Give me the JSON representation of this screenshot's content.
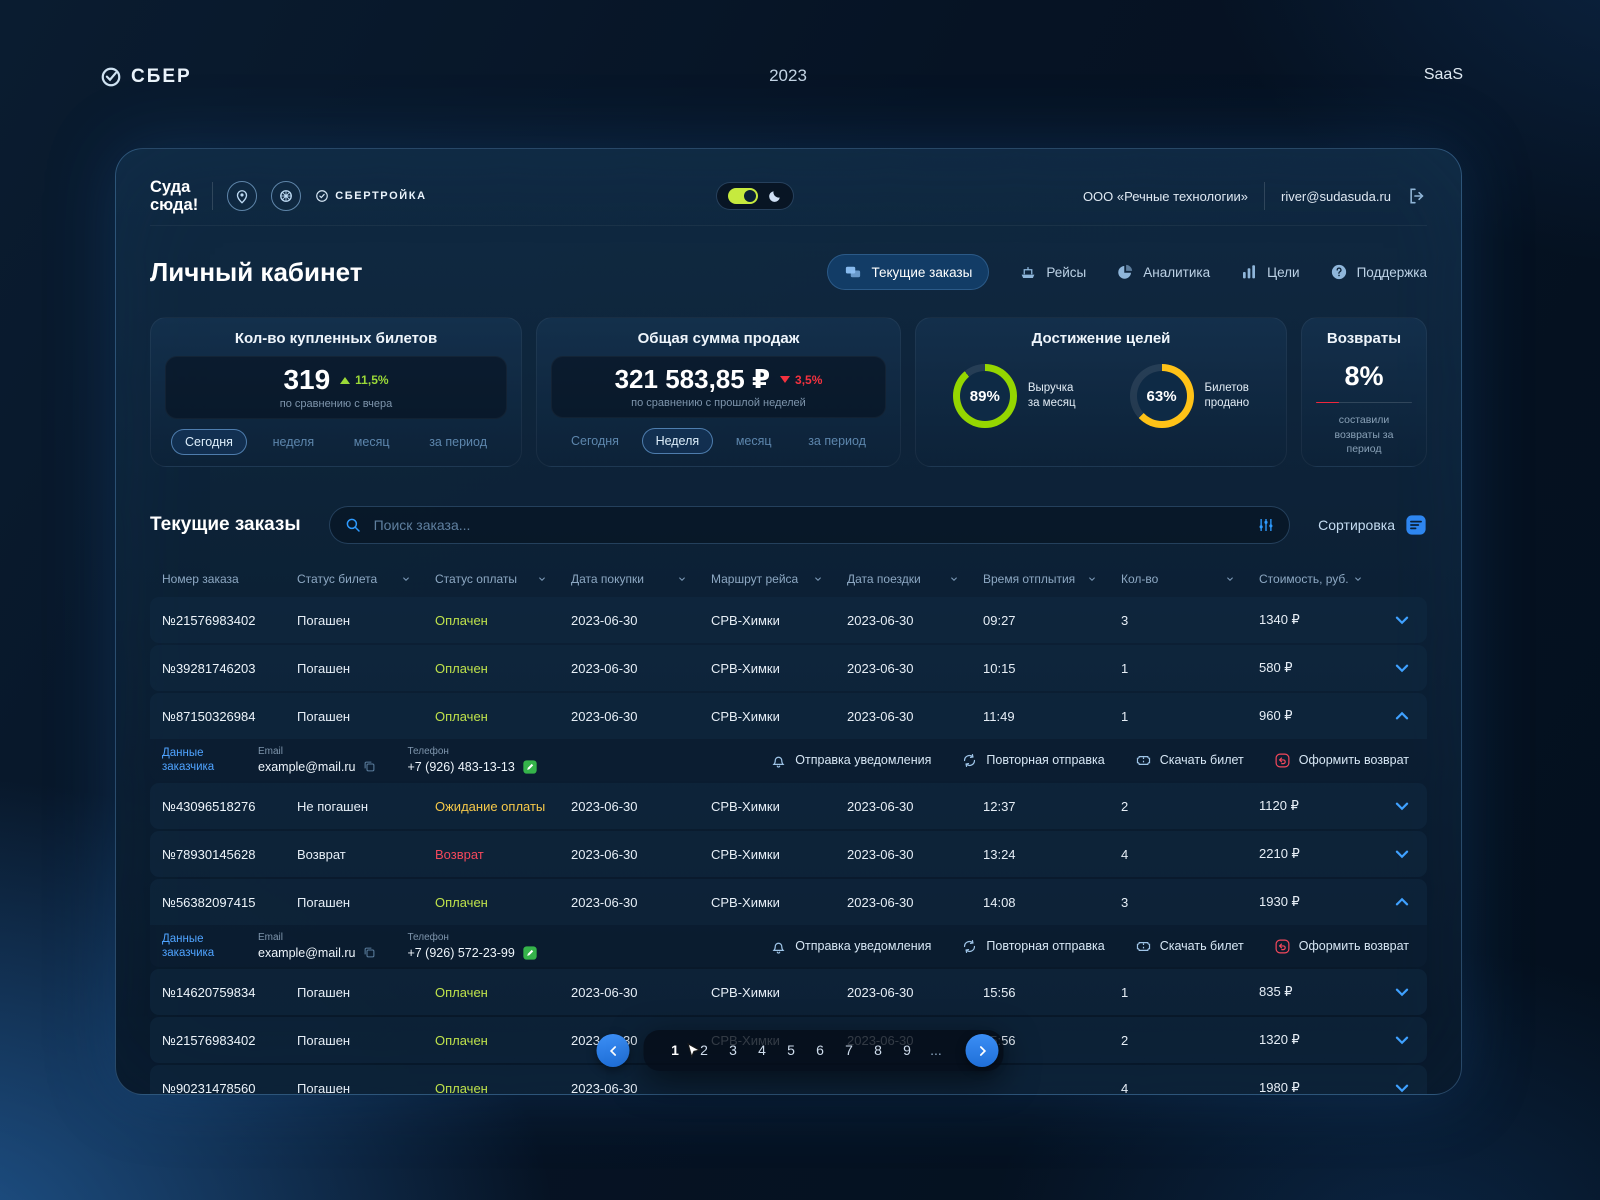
{
  "topbar": {
    "brand": "СБЕР",
    "year": "2023",
    "saas": "SaaS"
  },
  "header": {
    "logo_line1": "Суда",
    "logo_line2": "сюда!",
    "sbertroika": "СБЕРТРОЙКА",
    "company": "ООО «Речные технологии»",
    "email": "river@sudasuda.ru"
  },
  "nav": {
    "title": "Личный кабинет",
    "tabs": [
      {
        "name": "current-orders",
        "label": "Текущие заказы",
        "icon": "tickets-icon",
        "active": true
      },
      {
        "name": "trips",
        "label": "Рейсы",
        "icon": "ship-icon",
        "active": false
      },
      {
        "name": "analytics",
        "label": "Аналитика",
        "icon": "pie-icon",
        "active": false
      },
      {
        "name": "goals",
        "label": "Цели",
        "icon": "bars-icon",
        "active": false
      },
      {
        "name": "support",
        "label": "Поддержка",
        "icon": "question-icon",
        "active": false
      }
    ]
  },
  "stats": {
    "tickets": {
      "title": "Кол-во купленных билетов",
      "value": "319",
      "delta": "11,5%",
      "trend": "up",
      "compare": "по сравнению с вчера",
      "periods": [
        {
          "label": "Сегодня",
          "active": true
        },
        {
          "label": "неделя",
          "active": false
        },
        {
          "label": "месяц",
          "active": false
        },
        {
          "label": "за период",
          "active": false
        }
      ]
    },
    "sales": {
      "title": "Общая сумма продаж",
      "value": "321 583,85 ₽",
      "delta": "3,5%",
      "trend": "down",
      "compare": "по сравнению с прошлой неделей",
      "periods": [
        {
          "label": "Сегодня",
          "active": false
        },
        {
          "label": "Неделя",
          "active": true
        },
        {
          "label": "месяц",
          "active": false
        },
        {
          "label": "за период",
          "active": false
        }
      ]
    },
    "goals": {
      "title": "Достижение целей",
      "items": [
        {
          "percent": 89,
          "label": "Выручка\nза месяц",
          "color": "#95d600"
        },
        {
          "percent": 63,
          "label": "Билетов\nпродано",
          "color": "#ffc217"
        }
      ]
    },
    "returns": {
      "title": "Возвраты",
      "value": "8%",
      "percent": 8,
      "caption": "составили возвраты за период",
      "color": "#f0263c"
    }
  },
  "orders": {
    "title": "Текущие заказы",
    "search_placeholder": "Поиск заказа...",
    "sort_label": "Сортировка",
    "columns": [
      {
        "label": "Номер заказа",
        "sortable": false
      },
      {
        "label": "Статус билета",
        "sortable": true
      },
      {
        "label": "Статус оплаты",
        "sortable": true
      },
      {
        "label": "Дата покупки",
        "sortable": true
      },
      {
        "label": "Маршрут рейса",
        "sortable": true
      },
      {
        "label": "Дата поездки",
        "sortable": true
      },
      {
        "label": "Время отплытия",
        "sortable": true
      },
      {
        "label": "Кол-во",
        "sortable": true
      },
      {
        "label": "Стоимость, руб.",
        "sortable": true
      }
    ],
    "detail_labels": {
      "customer": "Данные заказчика",
      "email": "Email",
      "phone": "Телефон"
    },
    "actions": [
      {
        "name": "notify",
        "label": "Отправка уведомления",
        "icon": "bell-icon",
        "danger": false
      },
      {
        "name": "resend",
        "label": "Повторная отправка",
        "icon": "repeat-icon",
        "danger": false
      },
      {
        "name": "download-ticket",
        "label": "Скачать билет",
        "icon": "ticket-icon",
        "danger": false
      },
      {
        "name": "refund",
        "label": "Оформить возврат",
        "icon": "return-icon",
        "danger": true
      }
    ],
    "rows": [
      {
        "number": "№21576983402",
        "ticket_status": "Погашен",
        "payment_status": "Оплачен",
        "payment_class": "paid",
        "purchase_date": "2023-06-30",
        "route": "СРВ-Химки",
        "trip_date": "2023-06-30",
        "departure": "09:27",
        "qty": "3",
        "price": "1340 ₽",
        "expanded": false
      },
      {
        "number": "№39281746203",
        "ticket_status": "Погашен",
        "payment_status": "Оплачен",
        "payment_class": "paid",
        "purchase_date": "2023-06-30",
        "route": "СРВ-Химки",
        "trip_date": "2023-06-30",
        "departure": "10:15",
        "qty": "1",
        "price": "580 ₽",
        "expanded": false
      },
      {
        "number": "№87150326984",
        "ticket_status": "Погашен",
        "payment_status": "Оплачен",
        "payment_class": "paid",
        "purchase_date": "2023-06-30",
        "route": "СРВ-Химки",
        "trip_date": "2023-06-30",
        "departure": "11:49",
        "qty": "1",
        "price": "960 ₽",
        "expanded": true,
        "email": "example@mail.ru",
        "phone": "+7 (926) 483-13-13"
      },
      {
        "number": "№43096518276",
        "ticket_status": "Не погашен",
        "payment_status": "Ожидание оплаты",
        "payment_class": "pending",
        "purchase_date": "2023-06-30",
        "route": "СРВ-Химки",
        "trip_date": "2023-06-30",
        "departure": "12:37",
        "qty": "2",
        "price": "1120 ₽",
        "expanded": false
      },
      {
        "number": "№78930145628",
        "ticket_status": "Возврат",
        "payment_status": "Возврат",
        "payment_class": "refund",
        "purchase_date": "2023-06-30",
        "route": "СРВ-Химки",
        "trip_date": "2023-06-30",
        "departure": "13:24",
        "qty": "4",
        "price": "2210 ₽",
        "expanded": false
      },
      {
        "number": "№56382097415",
        "ticket_status": "Погашен",
        "payment_status": "Оплачен",
        "payment_class": "paid",
        "purchase_date": "2023-06-30",
        "route": "СРВ-Химки",
        "trip_date": "2023-06-30",
        "departure": "14:08",
        "qty": "3",
        "price": "1930 ₽",
        "expanded": true,
        "email": "example@mail.ru",
        "phone": "+7 (926) 572-23-99"
      },
      {
        "number": "№14620759834",
        "ticket_status": "Погашен",
        "payment_status": "Оплачен",
        "payment_class": "paid",
        "purchase_date": "2023-06-30",
        "route": "СРВ-Химки",
        "trip_date": "2023-06-30",
        "departure": "15:56",
        "qty": "1",
        "price": "835 ₽",
        "expanded": false
      },
      {
        "number": "№21576983402",
        "ticket_status": "Погашен",
        "payment_status": "Оплачен",
        "payment_class": "paid",
        "purchase_date": "2023-06-30",
        "route": "СРВ-Химки",
        "trip_date": "2023-06-30",
        "departure": "15:56",
        "qty": "2",
        "price": "1320 ₽",
        "expanded": false
      },
      {
        "number": "№90231478560",
        "ticket_status": "Погашен",
        "payment_status": "Оплачен",
        "payment_class": "paid",
        "purchase_date": "2023-06-30",
        "route": "",
        "trip_date": "",
        "departure": "",
        "qty": "4",
        "price": "1980 ₽",
        "expanded": false
      }
    ]
  },
  "pagination": {
    "pages": [
      "1",
      "2",
      "3",
      "4",
      "5",
      "6",
      "7",
      "8",
      "9",
      "..."
    ],
    "active": "1"
  }
}
